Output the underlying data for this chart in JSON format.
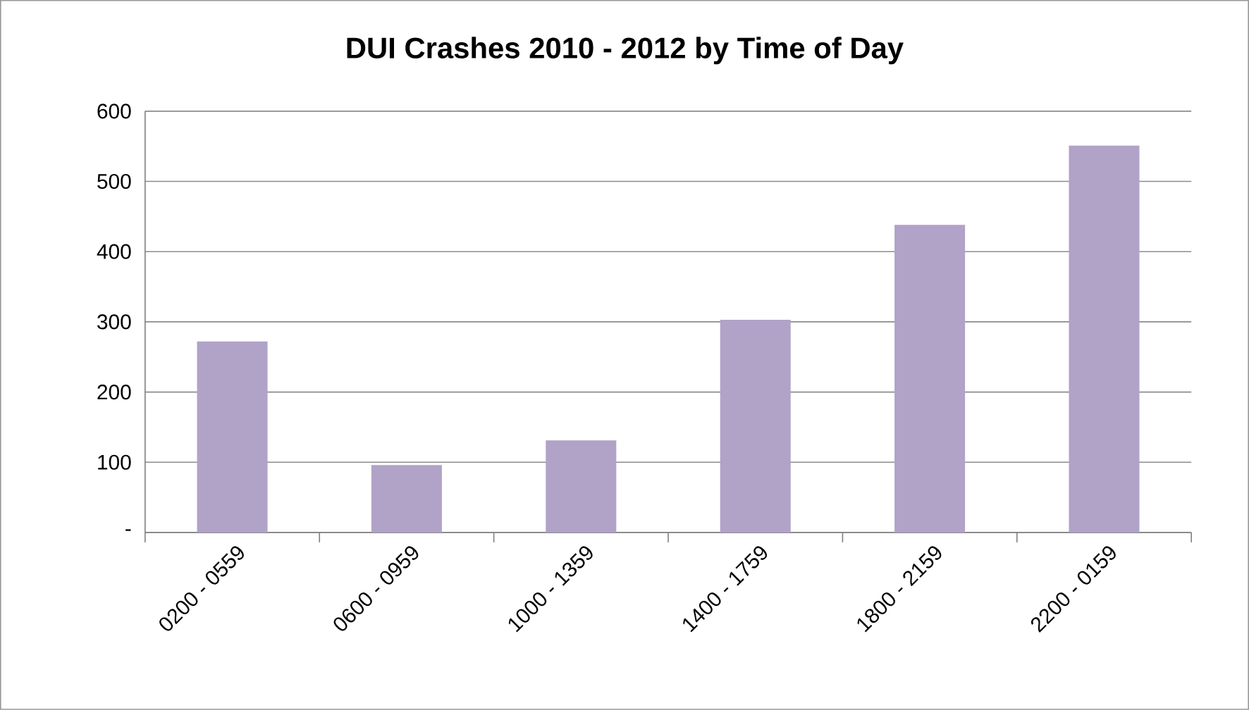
{
  "chart_data": {
    "type": "bar",
    "title": "DUI Crashes 2010 - 2012 by Time of Day",
    "categories": [
      "0200 - 0559",
      "0600 - 0959",
      "1000 - 1359",
      "1400 - 1759",
      "1800 - 2159",
      "2200 - 0159"
    ],
    "values": [
      272,
      96,
      131,
      303,
      438,
      551
    ],
    "color": "#b1a2c8",
    "ylim": [
      0,
      600
    ],
    "yticks": [
      {
        "value": 0,
        "label": "-"
      },
      100,
      200,
      300,
      400,
      500,
      600
    ],
    "grid": "y"
  }
}
